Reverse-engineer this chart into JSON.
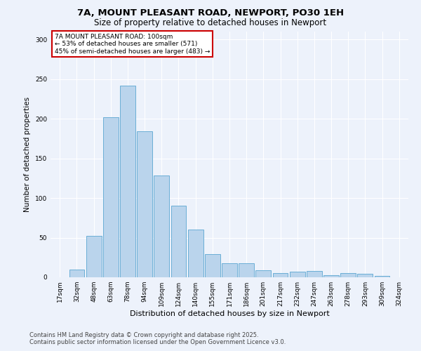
{
  "title": "7A, MOUNT PLEASANT ROAD, NEWPORT, PO30 1EH",
  "subtitle": "Size of property relative to detached houses in Newport",
  "xlabel": "Distribution of detached houses by size in Newport",
  "ylabel": "Number of detached properties",
  "categories": [
    "17sqm",
    "32sqm",
    "48sqm",
    "63sqm",
    "78sqm",
    "94sqm",
    "109sqm",
    "124sqm",
    "140sqm",
    "155sqm",
    "171sqm",
    "186sqm",
    "201sqm",
    "217sqm",
    "232sqm",
    "247sqm",
    "263sqm",
    "278sqm",
    "293sqm",
    "309sqm",
    "324sqm"
  ],
  "values": [
    0,
    10,
    52,
    202,
    242,
    184,
    128,
    90,
    60,
    29,
    18,
    18,
    9,
    5,
    7,
    8,
    3,
    5,
    4,
    2,
    0
  ],
  "bar_color": "#bad4ec",
  "bar_edgecolor": "#6aaed6",
  "annotation_text": "7A MOUNT PLEASANT ROAD: 100sqm\n← 53% of detached houses are smaller (571)\n45% of semi-detached houses are larger (483) →",
  "annotation_box_facecolor": "#ffffff",
  "annotation_box_edgecolor": "#cc0000",
  "footer_line1": "Contains HM Land Registry data © Crown copyright and database right 2025.",
  "footer_line2": "Contains public sector information licensed under the Open Government Licence v3.0.",
  "bg_color": "#edf2fb",
  "plot_bg_color": "#edf2fb",
  "grid_color": "#ffffff",
  "ylim": [
    0,
    310
  ],
  "title_fontsize": 9.5,
  "subtitle_fontsize": 8.5,
  "ylabel_fontsize": 7.5,
  "xlabel_fontsize": 8,
  "tick_fontsize": 6.5,
  "annot_fontsize": 6.5,
  "footer_fontsize": 6
}
